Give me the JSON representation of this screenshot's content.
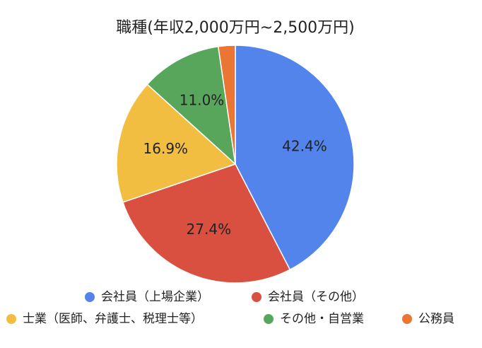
{
  "chart_data": {
    "type": "pie",
    "title": "職種(年収2,000万円~2,500万円)",
    "categories": [
      "会社員（上場企業）",
      "会社員（その他）",
      "士業（医師、弁護士、税理士等）",
      "その他・自営業",
      "公務員"
    ],
    "values": [
      42.4,
      27.4,
      16.9,
      11.0,
      2.3
    ],
    "value_labels": [
      "42.4%",
      "27.4%",
      "16.9%",
      "11.0%",
      null
    ],
    "colors": [
      "#5384ec",
      "#d95040",
      "#f2be42",
      "#58a65c",
      "#eb7533"
    ]
  }
}
